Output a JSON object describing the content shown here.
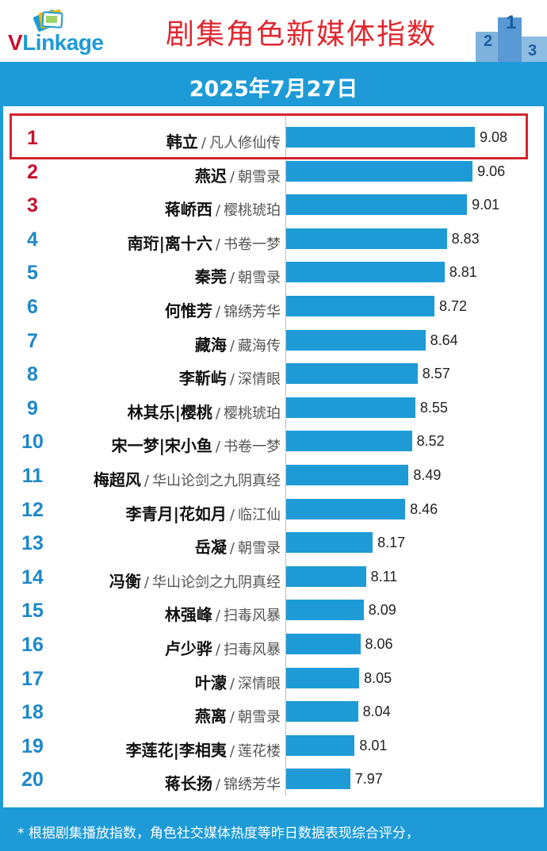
{
  "header": {
    "logo_v": "V",
    "logo_rest": "Linkage",
    "title": "剧集角色新媒体指数",
    "date": "2025年7月27日"
  },
  "colors": {
    "accent": "#1e9bd7",
    "red": "#c8102e",
    "highlight": "#d3262d"
  },
  "chart_data": {
    "type": "bar",
    "orientation": "horizontal",
    "title": "剧集角色新媒体指数",
    "subtitle": "2025年7月27日",
    "xlim": [
      7.4,
      9.2
    ],
    "grid": false,
    "items": [
      {
        "rank": "1",
        "character": "韩立",
        "drama": "凡人修仙传",
        "value": 9.08,
        "label": "9.08"
      },
      {
        "rank": "2",
        "character": "燕迟",
        "drama": "朝雪录",
        "value": 9.06,
        "label": "9.06"
      },
      {
        "rank": "3",
        "character": "蒋峤西",
        "drama": "樱桃琥珀",
        "value": 9.01,
        "label": "9.01"
      },
      {
        "rank": "4",
        "character": "南珩|离十六",
        "drama": "书卷一梦",
        "value": 8.83,
        "label": "8.83"
      },
      {
        "rank": "5",
        "character": "秦莞",
        "drama": "朝雪录",
        "value": 8.81,
        "label": "8.81"
      },
      {
        "rank": "6",
        "character": "何惟芳",
        "drama": "锦绣芳华",
        "value": 8.72,
        "label": "8.72"
      },
      {
        "rank": "7",
        "character": "藏海",
        "drama": "藏海传",
        "value": 8.64,
        "label": "8.64"
      },
      {
        "rank": "8",
        "character": "李靳屿",
        "drama": "深情眼",
        "value": 8.57,
        "label": "8.57"
      },
      {
        "rank": "9",
        "character": "林其乐|樱桃",
        "drama": "樱桃琥珀",
        "value": 8.55,
        "label": "8.55"
      },
      {
        "rank": "10",
        "character": "宋一梦|宋小鱼",
        "drama": "书卷一梦",
        "value": 8.52,
        "label": "8.52"
      },
      {
        "rank": "11",
        "character": "梅超风",
        "drama": "华山论剑之九阴真经",
        "value": 8.49,
        "label": "8.49"
      },
      {
        "rank": "12",
        "character": "李青月|花如月",
        "drama": "临江仙",
        "value": 8.46,
        "label": "8.46"
      },
      {
        "rank": "13",
        "character": "岳凝",
        "drama": "朝雪录",
        "value": 8.17,
        "label": "8.17"
      },
      {
        "rank": "14",
        "character": "冯衡",
        "drama": "华山论剑之九阴真经",
        "value": 8.11,
        "label": "8.11"
      },
      {
        "rank": "15",
        "character": "林强峰",
        "drama": "扫毒风暴",
        "value": 8.09,
        "label": "8.09"
      },
      {
        "rank": "16",
        "character": "卢少骅",
        "drama": "扫毒风暴",
        "value": 8.06,
        "label": "8.06"
      },
      {
        "rank": "17",
        "character": "叶濛",
        "drama": "深情眼",
        "value": 8.05,
        "label": "8.05"
      },
      {
        "rank": "18",
        "character": "燕离",
        "drama": "朝雪录",
        "value": 8.04,
        "label": "8.04"
      },
      {
        "rank": "19",
        "character": "李莲花|李相夷",
        "drama": "莲花楼",
        "value": 8.01,
        "label": "8.01"
      },
      {
        "rank": "20",
        "character": "蒋长扬",
        "drama": "锦绣芳华",
        "value": 7.97,
        "label": "7.97"
      }
    ]
  },
  "footer": {
    "note": "* 根据剧集播放指数，角色社交媒体热度等昨日数据表现综合评分，"
  }
}
